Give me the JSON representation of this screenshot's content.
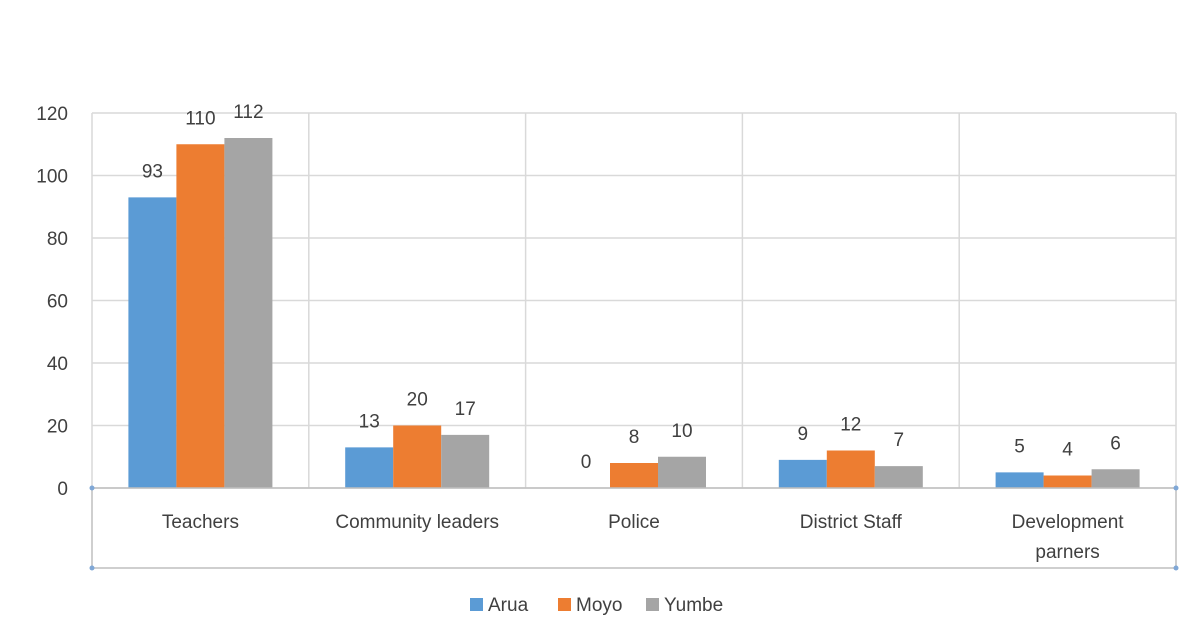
{
  "chart_data": {
    "type": "bar",
    "categories": [
      [
        "Teachers"
      ],
      [
        "Community leaders"
      ],
      [
        "Police"
      ],
      [
        "District Staff"
      ],
      [
        "Development",
        "parners"
      ]
    ],
    "series": [
      {
        "name": "Arua",
        "color": "#5B9BD5",
        "values": [
          93,
          13,
          0,
          9,
          5
        ]
      },
      {
        "name": "Moyo",
        "color": "#ED7D31",
        "values": [
          110,
          20,
          8,
          12,
          4
        ]
      },
      {
        "name": "Yumbe",
        "color": "#A5A5A5",
        "values": [
          112,
          17,
          10,
          7,
          6
        ]
      }
    ],
    "ylim": [
      0,
      120
    ],
    "yticks": [
      0,
      20,
      40,
      60,
      80,
      100,
      120
    ],
    "grid": true,
    "data_labels": true,
    "legend": "bottom"
  }
}
